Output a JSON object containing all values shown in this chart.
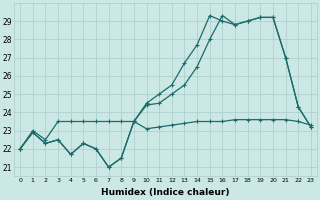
{
  "xlabel": "Humidex (Indice chaleur)",
  "bg_color": "#cce8e4",
  "grid_color": "#aacccc",
  "line_color": "#1a6b6b",
  "x": [
    0,
    1,
    2,
    3,
    4,
    5,
    6,
    7,
    8,
    9,
    10,
    11,
    12,
    13,
    14,
    15,
    16,
    17,
    18,
    19,
    20,
    21,
    22,
    23
  ],
  "line1": [
    22.0,
    22.9,
    22.3,
    22.5,
    21.7,
    22.3,
    22.0,
    21.0,
    21.5,
    23.5,
    23.1,
    23.2,
    23.3,
    23.4,
    23.5,
    23.5,
    23.5,
    23.6,
    23.6,
    23.6,
    23.6,
    23.6,
    23.5,
    23.3
  ],
  "line2": [
    22.0,
    22.9,
    22.3,
    22.5,
    21.7,
    22.3,
    22.0,
    21.0,
    21.5,
    23.5,
    24.4,
    24.5,
    25.0,
    25.5,
    26.5,
    28.0,
    29.3,
    28.8,
    29.0,
    29.2,
    29.2,
    27.0,
    24.3,
    23.2
  ],
  "line3": [
    22.0,
    23.0,
    22.5,
    23.5,
    23.5,
    23.5,
    23.5,
    23.5,
    23.5,
    23.5,
    24.5,
    25.0,
    25.5,
    26.7,
    27.7,
    29.3,
    29.0,
    28.8,
    29.0,
    29.2,
    29.2,
    27.0,
    24.3,
    23.2
  ],
  "ylim": [
    20.5,
    30.0
  ],
  "yticks": [
    21,
    22,
    23,
    24,
    25,
    26,
    27,
    28,
    29
  ],
  "xticks": [
    0,
    1,
    2,
    3,
    4,
    5,
    6,
    7,
    8,
    9,
    10,
    11,
    12,
    13,
    14,
    15,
    16,
    17,
    18,
    19,
    20,
    21,
    22,
    23
  ],
  "markersize": 3,
  "linewidth": 0.9
}
